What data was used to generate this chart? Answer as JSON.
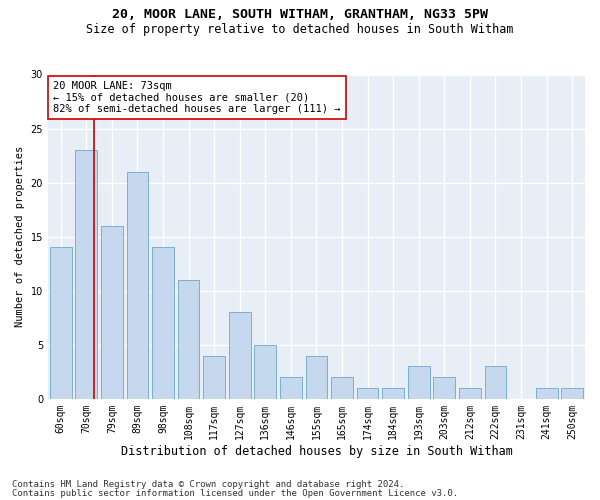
{
  "title1": "20, MOOR LANE, SOUTH WITHAM, GRANTHAM, NG33 5PW",
  "title2": "Size of property relative to detached houses in South Witham",
  "xlabel": "Distribution of detached houses by size in South Witham",
  "ylabel": "Number of detached properties",
  "categories": [
    "60sqm",
    "70sqm",
    "79sqm",
    "89sqm",
    "98sqm",
    "108sqm",
    "117sqm",
    "127sqm",
    "136sqm",
    "146sqm",
    "155sqm",
    "165sqm",
    "174sqm",
    "184sqm",
    "193sqm",
    "203sqm",
    "212sqm",
    "222sqm",
    "231sqm",
    "241sqm",
    "250sqm"
  ],
  "values": [
    14,
    23,
    16,
    21,
    14,
    11,
    4,
    8,
    5,
    2,
    4,
    2,
    1,
    1,
    3,
    2,
    1,
    3,
    0,
    1,
    1
  ],
  "bar_color": "#c5d8ed",
  "bar_edgecolor": "#7aafd4",
  "vline_x": 1.3,
  "vline_color": "#cc0000",
  "annotation_text": "20 MOOR LANE: 73sqm\n← 15% of detached houses are smaller (20)\n82% of semi-detached houses are larger (111) →",
  "annotation_box_color": "#ffffff",
  "annotation_box_edgecolor": "#cc0000",
  "footer1": "Contains HM Land Registry data © Crown copyright and database right 2024.",
  "footer2": "Contains public sector information licensed under the Open Government Licence v3.0.",
  "ylim": [
    0,
    30
  ],
  "yticks": [
    0,
    5,
    10,
    15,
    20,
    25,
    30
  ],
  "bg_color": "#e8eef6",
  "grid_color": "#ffffff",
  "title1_fontsize": 9.5,
  "title2_fontsize": 8.5,
  "xlabel_fontsize": 8.5,
  "ylabel_fontsize": 7.5,
  "tick_fontsize": 7,
  "annotation_fontsize": 7.5,
  "footer_fontsize": 6.5
}
